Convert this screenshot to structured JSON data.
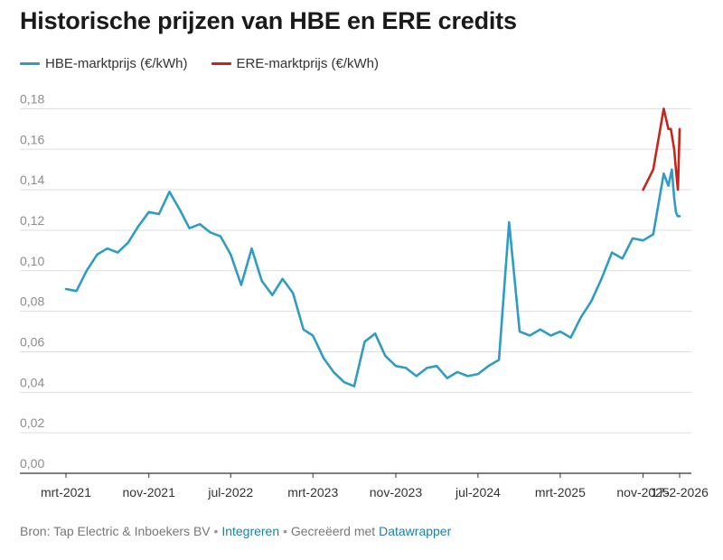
{
  "title": "Historische prijzen van HBE en ERE credits",
  "legend": [
    {
      "label": "HBE-marktprijs (€/kWh)",
      "color": "#2e9cc3"
    },
    {
      "label": "ERE-marktprijs (€/kWh)",
      "color": "#c3271c"
    }
  ],
  "footer": {
    "source": "Bron: Tap Electric & Inboekers BV",
    "separator": "•",
    "embed_link": "Integreren",
    "created_with": "Gecreëerd met",
    "tool_link": "Datawrapper"
  },
  "colors": {
    "accent": "#1d81a2",
    "grid": "#dddddd",
    "axis": "#333333"
  },
  "chart_data": {
    "type": "line",
    "title": "Historische prijzen van HBE en ERE credits",
    "xlabel": "",
    "ylabel": "",
    "ylim": [
      0,
      0.19
    ],
    "grid": true,
    "legend_position": "top-left",
    "y_ticks": [
      {
        "value": 0.0,
        "label": "0,00"
      },
      {
        "value": 0.02,
        "label": "0,02"
      },
      {
        "value": 0.04,
        "label": "0,04"
      },
      {
        "value": 0.06,
        "label": "0,06"
      },
      {
        "value": 0.08,
        "label": "0,08"
      },
      {
        "value": 0.1,
        "label": "0,10"
      },
      {
        "value": 0.12,
        "label": "0,12"
      },
      {
        "value": 0.14,
        "label": "0,14"
      },
      {
        "value": 0.16,
        "label": "0,16"
      },
      {
        "value": 0.18,
        "label": "0,18"
      }
    ],
    "x_ticks": [
      {
        "date": "2021-03",
        "label": "mrt-2021"
      },
      {
        "date": "2021-11",
        "label": "nov-2021"
      },
      {
        "date": "2022-07",
        "label": "jul-2022"
      },
      {
        "date": "2023-03",
        "label": "mrt-2023"
      },
      {
        "date": "2023-11",
        "label": "nov-2023"
      },
      {
        "date": "2024-07",
        "label": "jul-2024"
      },
      {
        "date": "2025-03",
        "label": "mrt-2025"
      },
      {
        "date": "2025-11",
        "label": "nov-2025"
      },
      {
        "date": "2026-02-17",
        "label": "17-2-2026"
      }
    ],
    "series": [
      {
        "name": "HBE-marktprijs (€/kWh)",
        "color": "#2e9cc3",
        "points": [
          [
            "2021-03",
            0.091
          ],
          [
            "2021-04",
            0.09
          ],
          [
            "2021-05",
            0.1
          ],
          [
            "2021-06",
            0.108
          ],
          [
            "2021-07",
            0.111
          ],
          [
            "2021-08",
            0.109
          ],
          [
            "2021-09",
            0.114
          ],
          [
            "2021-10",
            0.122
          ],
          [
            "2021-11",
            0.129
          ],
          [
            "2021-12",
            0.128
          ],
          [
            "2022-01",
            0.139
          ],
          [
            "2022-02",
            0.13
          ],
          [
            "2022-03",
            0.121
          ],
          [
            "2022-04",
            0.123
          ],
          [
            "2022-05",
            0.119
          ],
          [
            "2022-06",
            0.117
          ],
          [
            "2022-07",
            0.108
          ],
          [
            "2022-08",
            0.093
          ],
          [
            "2022-09",
            0.111
          ],
          [
            "2022-10",
            0.095
          ],
          [
            "2022-11",
            0.088
          ],
          [
            "2022-12",
            0.096
          ],
          [
            "2023-01",
            0.089
          ],
          [
            "2023-02",
            0.071
          ],
          [
            "2023-03",
            0.068
          ],
          [
            "2023-04",
            0.057
          ],
          [
            "2023-05",
            0.05
          ],
          [
            "2023-06",
            0.045
          ],
          [
            "2023-07",
            0.043
          ],
          [
            "2023-08",
            0.065
          ],
          [
            "2023-09",
            0.069
          ],
          [
            "2023-10",
            0.058
          ],
          [
            "2023-11",
            0.053
          ],
          [
            "2023-12",
            0.052
          ],
          [
            "2024-01",
            0.048
          ],
          [
            "2024-02",
            0.052
          ],
          [
            "2024-03",
            0.053
          ],
          [
            "2024-04",
            0.047
          ],
          [
            "2024-05",
            0.05
          ],
          [
            "2024-06",
            0.048
          ],
          [
            "2024-07",
            0.049
          ],
          [
            "2024-08",
            0.053
          ],
          [
            "2024-09",
            0.056
          ],
          [
            "2024-10",
            0.124
          ],
          [
            "2024-11",
            0.07
          ],
          [
            "2024-12",
            0.068
          ],
          [
            "2025-01",
            0.071
          ],
          [
            "2025-02",
            0.068
          ],
          [
            "2025-03",
            0.07
          ],
          [
            "2025-04",
            0.067
          ],
          [
            "2025-05",
            0.077
          ],
          [
            "2025-06",
            0.085
          ],
          [
            "2025-07",
            0.096
          ],
          [
            "2025-08",
            0.109
          ],
          [
            "2025-09",
            0.106
          ],
          [
            "2025-10",
            0.116
          ],
          [
            "2025-11",
            0.115
          ],
          [
            "2025-12",
            0.118
          ],
          [
            "2026-01",
            0.148
          ],
          [
            "2026-01-15",
            0.142
          ],
          [
            "2026-01-25",
            0.15
          ],
          [
            "2026-02-01",
            0.136
          ],
          [
            "2026-02-06",
            0.129
          ],
          [
            "2026-02-11",
            0.127
          ],
          [
            "2026-02-17",
            0.127
          ]
        ]
      },
      {
        "name": "ERE-marktprijs (€/kWh)",
        "color": "#c3271c",
        "points": [
          [
            "2025-11",
            0.14
          ],
          [
            "2025-12",
            0.15
          ],
          [
            "2026-01",
            0.18
          ],
          [
            "2026-01-15",
            0.17
          ],
          [
            "2026-01-22",
            0.17
          ],
          [
            "2026-02-01",
            0.16
          ],
          [
            "2026-02-06",
            0.15
          ],
          [
            "2026-02-12",
            0.14
          ],
          [
            "2026-02-17",
            0.17
          ]
        ]
      }
    ]
  }
}
